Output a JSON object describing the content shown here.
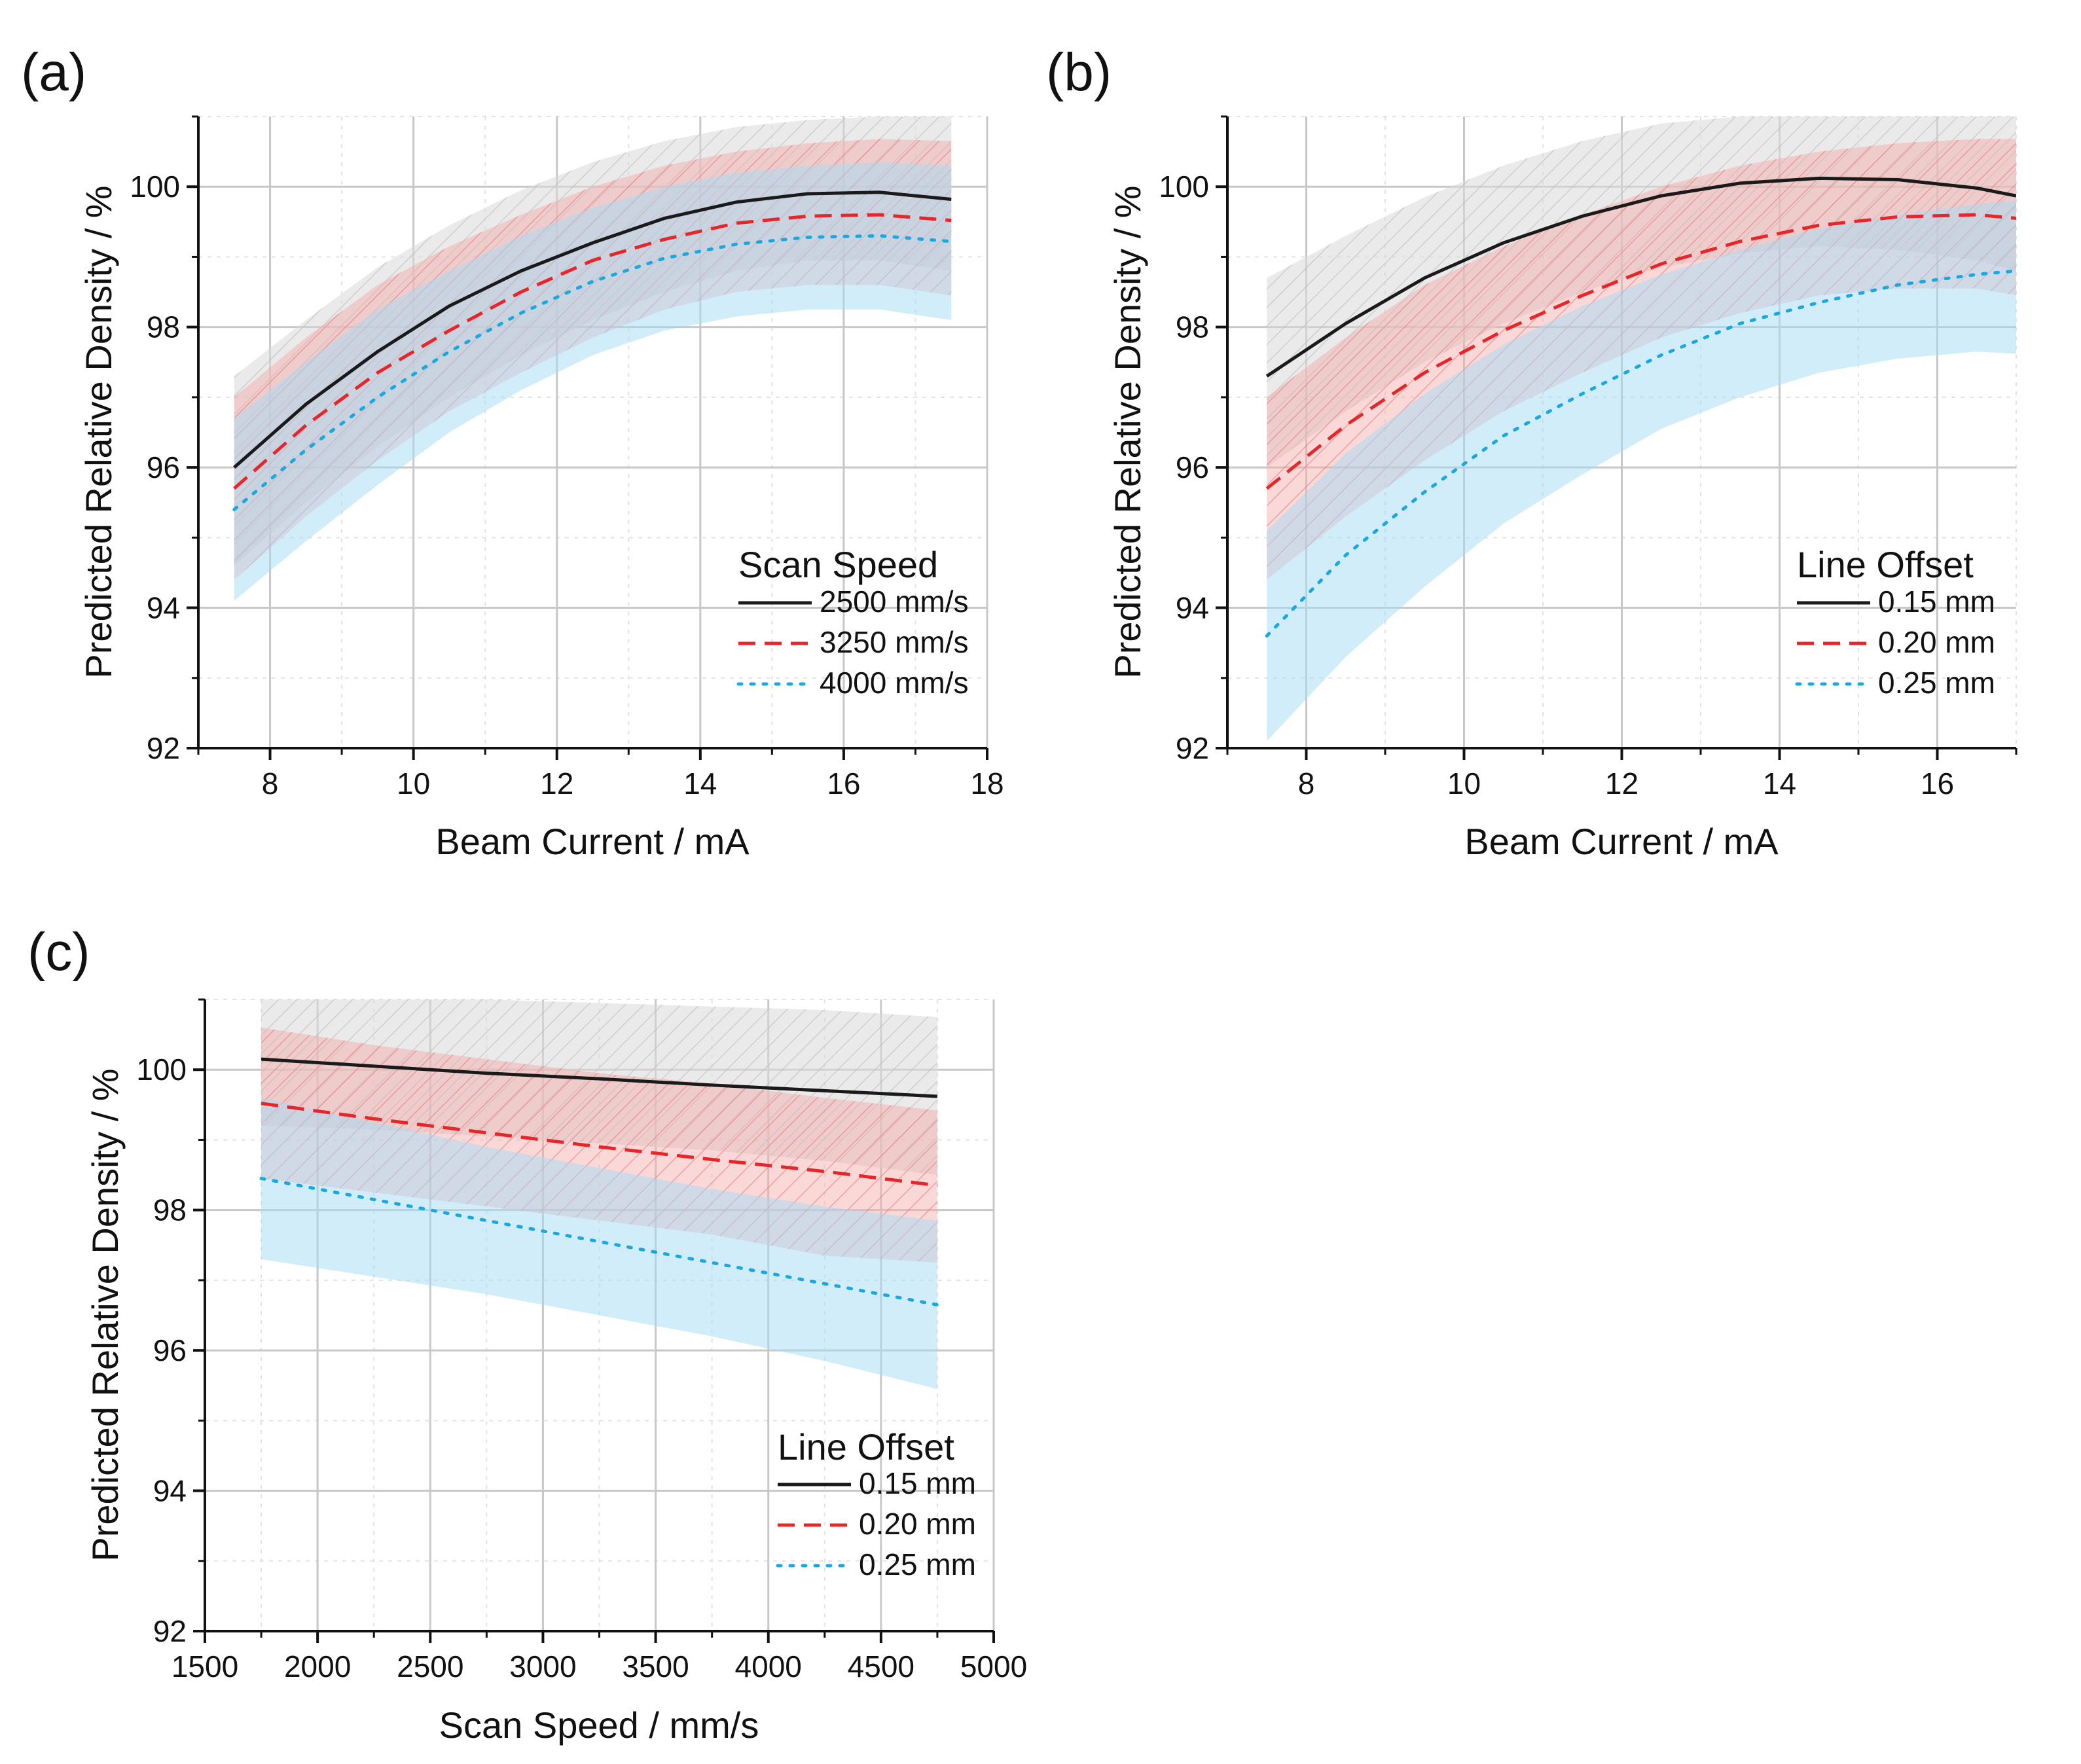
{
  "colors": {
    "black": "#1a1a1a",
    "red": "#e8262a",
    "blue": "#19a9e0",
    "band_gray": "#d9d9d9",
    "band_red": "#f7a8a8",
    "band_blue": "#a5dcf6"
  },
  "chart_data": [
    {
      "type": "line",
      "panel_label": "(a)",
      "xlabel": "Beam Current / mA",
      "ylabel": "Predicted Relative Density / %",
      "xlim": [
        7,
        18
      ],
      "ylim": [
        92,
        101
      ],
      "xticks": [
        8,
        10,
        12,
        14,
        16,
        18
      ],
      "yticks": [
        92,
        94,
        96,
        98,
        100
      ],
      "legend_title": "Scan Speed",
      "legend_position": "bottom-right",
      "x": [
        7.5,
        8.5,
        9.5,
        10.5,
        11.5,
        12.5,
        13.5,
        14.5,
        15.5,
        16.5,
        17.5
      ],
      "series": [
        {
          "name": "2500 mm/s",
          "style": "solid",
          "color": "black",
          "values": [
            96.0,
            96.9,
            97.65,
            98.3,
            98.8,
            99.2,
            99.55,
            99.78,
            99.9,
            99.92,
            99.82
          ],
          "lower": [
            94.6,
            95.5,
            96.3,
            97.0,
            97.6,
            98.1,
            98.5,
            98.8,
            98.95,
            98.95,
            98.8
          ],
          "upper": [
            97.3,
            98.1,
            98.85,
            99.45,
            99.95,
            100.35,
            100.65,
            100.85,
            100.95,
            101.0,
            101.0
          ]
        },
        {
          "name": "3250 mm/s",
          "style": "dashed",
          "color": "red",
          "values": [
            95.7,
            96.6,
            97.35,
            97.95,
            98.5,
            98.95,
            99.25,
            99.48,
            99.58,
            99.6,
            99.52
          ],
          "lower": [
            94.4,
            95.3,
            96.1,
            96.8,
            97.35,
            97.85,
            98.25,
            98.5,
            98.6,
            98.6,
            98.45
          ],
          "upper": [
            97.0,
            97.85,
            98.6,
            99.15,
            99.6,
            100.0,
            100.3,
            100.5,
            100.62,
            100.68,
            100.65
          ]
        },
        {
          "name": "4000 mm/s",
          "style": "dotted",
          "color": "blue",
          "values": [
            95.4,
            96.25,
            97.0,
            97.65,
            98.2,
            98.65,
            98.98,
            99.18,
            99.28,
            99.3,
            99.22
          ],
          "lower": [
            94.1,
            94.95,
            95.75,
            96.5,
            97.1,
            97.6,
            97.95,
            98.15,
            98.25,
            98.25,
            98.1
          ],
          "upper": [
            96.7,
            97.5,
            98.25,
            98.8,
            99.3,
            99.7,
            100.0,
            100.2,
            100.3,
            100.35,
            100.3
          ]
        }
      ]
    },
    {
      "type": "line",
      "panel_label": "(b)",
      "xlabel": "Beam Current / mA",
      "ylabel": "Predicted Relative Density / %",
      "xlim": [
        7,
        17
      ],
      "ylim": [
        92,
        101
      ],
      "xticks": [
        8,
        10,
        12,
        14,
        16
      ],
      "yticks": [
        92,
        94,
        96,
        98,
        100
      ],
      "legend_title": "Line Offset",
      "legend_position": "bottom-right",
      "x": [
        7.5,
        8.5,
        9.5,
        10.5,
        11.5,
        12.5,
        13.5,
        14.5,
        15.5,
        16.5,
        17.0
      ],
      "series": [
        {
          "name": "0.15 mm",
          "style": "solid",
          "color": "black",
          "values": [
            97.3,
            98.05,
            98.7,
            99.2,
            99.58,
            99.87,
            100.05,
            100.12,
            100.1,
            99.98,
            99.87
          ],
          "lower": [
            96.0,
            96.8,
            97.5,
            98.05,
            98.5,
            98.85,
            99.05,
            99.15,
            99.1,
            98.95,
            98.8
          ],
          "upper": [
            98.7,
            99.3,
            99.85,
            100.3,
            100.65,
            100.9,
            101.0,
            101.0,
            101.0,
            101.0,
            101.0
          ]
        },
        {
          "name": "0.20 mm",
          "style": "dashed",
          "color": "red",
          "values": [
            95.7,
            96.6,
            97.35,
            97.95,
            98.45,
            98.9,
            99.22,
            99.45,
            99.57,
            99.6,
            99.55
          ],
          "lower": [
            94.4,
            95.3,
            96.1,
            96.8,
            97.35,
            97.85,
            98.2,
            98.45,
            98.55,
            98.55,
            98.45
          ],
          "upper": [
            97.0,
            97.85,
            98.6,
            99.15,
            99.6,
            100.0,
            100.3,
            100.5,
            100.62,
            100.68,
            100.68
          ]
        },
        {
          "name": "0.25 mm",
          "style": "dotted",
          "color": "blue",
          "values": [
            93.6,
            94.75,
            95.65,
            96.45,
            97.05,
            97.6,
            98.05,
            98.35,
            98.6,
            98.75,
            98.8
          ],
          "lower": [
            92.1,
            93.3,
            94.3,
            95.2,
            95.9,
            96.55,
            97.0,
            97.35,
            97.55,
            97.65,
            97.62
          ],
          "upper": [
            95.1,
            96.2,
            97.05,
            97.75,
            98.3,
            98.75,
            99.1,
            99.4,
            99.6,
            99.75,
            99.8
          ]
        }
      ]
    },
    {
      "type": "line",
      "panel_label": "(c)",
      "xlabel": "Scan Speed / mm/s",
      "ylabel": "Predicted Relative Density / %",
      "xlim": [
        1500,
        5000
      ],
      "ylim": [
        92,
        101
      ],
      "xticks": [
        1500,
        2000,
        2500,
        3000,
        3500,
        4000,
        4500,
        5000
      ],
      "yticks": [
        92,
        94,
        96,
        98,
        100
      ],
      "legend_title": "Line Offset",
      "legend_position": "bottom-right",
      "x": [
        1750,
        2250,
        2750,
        3250,
        3750,
        4250,
        4750
      ],
      "series": [
        {
          "name": "0.15 mm",
          "style": "solid",
          "color": "black",
          "values": [
            100.15,
            100.05,
            99.95,
            99.87,
            99.78,
            99.7,
            99.62
          ],
          "lower": [
            99.2,
            99.15,
            99.05,
            98.95,
            98.85,
            98.7,
            98.5
          ],
          "upper": [
            101.0,
            101.0,
            101.0,
            100.95,
            100.9,
            100.85,
            100.75
          ]
        },
        {
          "name": "0.20 mm",
          "style": "dashed",
          "color": "red",
          "values": [
            99.52,
            99.3,
            99.1,
            98.9,
            98.72,
            98.55,
            98.35
          ],
          "lower": [
            98.45,
            98.25,
            98.05,
            97.85,
            97.65,
            97.35,
            97.25
          ],
          "upper": [
            100.6,
            100.35,
            100.15,
            99.95,
            99.8,
            99.6,
            99.42
          ]
        },
        {
          "name": "0.25 mm",
          "style": "dotted",
          "color": "blue",
          "values": [
            98.45,
            98.15,
            97.85,
            97.55,
            97.25,
            96.95,
            96.65
          ],
          "lower": [
            97.3,
            97.05,
            96.8,
            96.5,
            96.2,
            95.85,
            95.45
          ],
          "upper": [
            99.6,
            99.25,
            98.9,
            98.6,
            98.3,
            98.05,
            97.85
          ]
        }
      ]
    }
  ]
}
